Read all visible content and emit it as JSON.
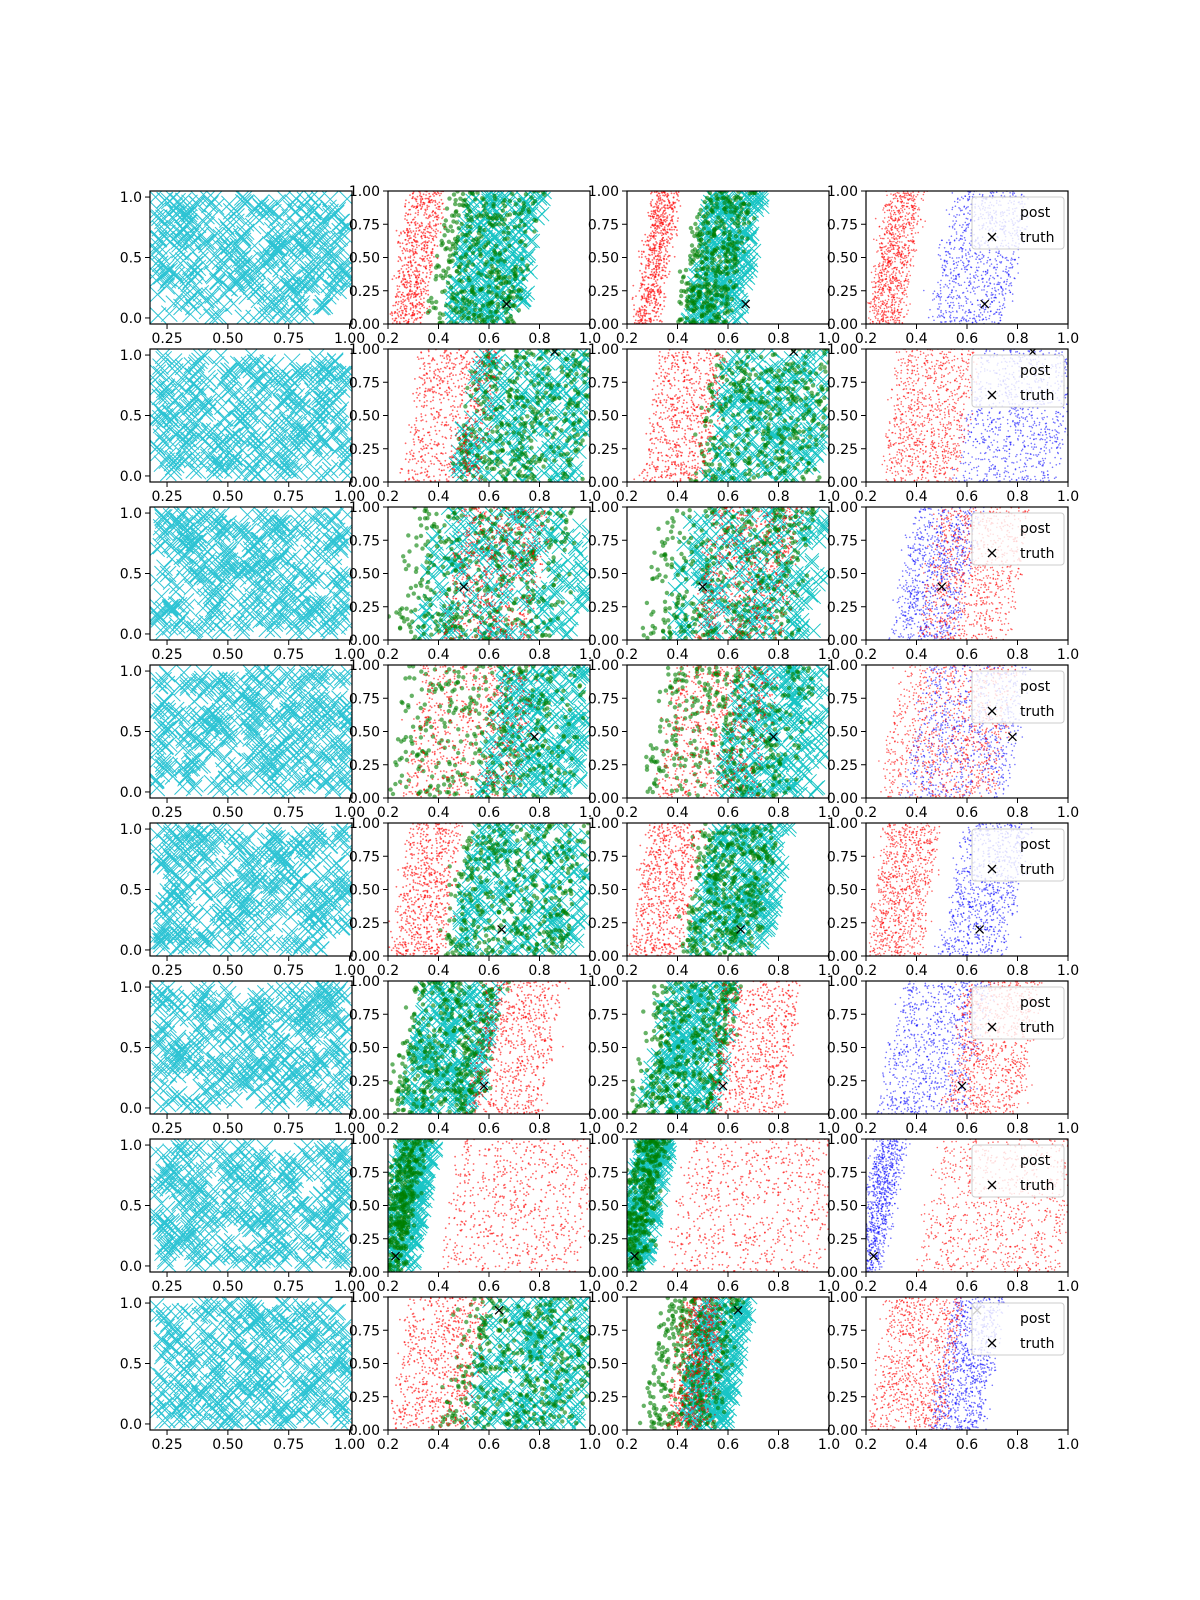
{
  "figure": {
    "rows": 8,
    "cols": 4
  },
  "colors": {
    "prior": "#17becf",
    "cyan_samples": "#00bfbf",
    "red_samples": "#ff0000",
    "green_samples": "#007f00",
    "blue_samples": "#0000ff",
    "truth_marker": "#000000"
  },
  "legend": {
    "post": "post",
    "truth": "truth",
    "placement": "upper right"
  },
  "chart_data": {
    "type": "scatter",
    "layout": "8x4 grid of scatter subplots",
    "columns": [
      {
        "col": 0,
        "content": "prior samples",
        "marker": "x",
        "color": "#17becf",
        "xlim": [
          0.18,
          1.01
        ],
        "ylim": [
          -0.05,
          1.05
        ],
        "xticks": [
          "0.25",
          "0.50",
          "0.75",
          "1.00"
        ],
        "yticks": [
          "0.0",
          "0.5",
          "1.0"
        ]
      },
      {
        "col": 1,
        "content": "red, green and cyan sample clouds",
        "xlim": [
          0.2,
          1.0
        ],
        "ylim": [
          0.0,
          1.0
        ],
        "xticks": [
          "0.2",
          "0.4",
          "0.6",
          "0.8",
          "1.0"
        ],
        "yticks": [
          "0.00",
          "0.25",
          "0.50",
          "0.75",
          "1.00"
        ]
      },
      {
        "col": 2,
        "content": "red, green and cyan sample clouds",
        "xlim": [
          0.2,
          1.0
        ],
        "ylim": [
          0.0,
          1.0
        ],
        "xticks": [
          "0.2",
          "0.4",
          "0.6",
          "0.8",
          "1.0"
        ],
        "yticks": [
          "0.00",
          "0.25",
          "0.50",
          "0.75",
          "1.00"
        ]
      },
      {
        "col": 3,
        "content": "posterior (red, blue) with truth",
        "xlim": [
          0.2,
          1.0
        ],
        "ylim": [
          0.0,
          1.0
        ],
        "xticks": [
          "0.2",
          "0.4",
          "0.6",
          "0.8",
          "1.0"
        ],
        "yticks": [
          "0.00",
          "0.25",
          "0.50",
          "0.75",
          "1.00"
        ],
        "legend": [
          "post",
          "truth"
        ]
      }
    ],
    "rows": [
      {
        "row": 0,
        "truth": [
          0.67,
          0.15
        ],
        "red_band": [
          0.25,
          0.38
        ],
        "green_band": [
          0.4,
          0.75
        ],
        "cyan_band": [
          0.48,
          0.78
        ],
        "blue_band": [
          0.5,
          0.8
        ],
        "col2_red": [
          0.27,
          0.36
        ],
        "col2_green": [
          0.45,
          0.65
        ],
        "col2_cyan": [
          0.48,
          0.7
        ]
      },
      {
        "row": 1,
        "truth": [
          0.86,
          0.98
        ],
        "red_band": [
          0.3,
          0.6
        ],
        "green_band": [
          0.5,
          1.0
        ],
        "cyan_band": [
          0.5,
          1.0
        ],
        "blue_band": [
          0.6,
          1.0
        ],
        "col2_red": [
          0.3,
          0.55
        ],
        "col2_green": [
          0.5,
          1.0
        ],
        "col2_cyan": [
          0.55,
          1.0
        ]
      },
      {
        "row": 2,
        "truth": [
          0.5,
          0.4
        ],
        "red_band": [
          0.45,
          0.8
        ],
        "green_band": [
          0.25,
          0.9
        ],
        "cyan_band": [
          0.35,
          1.0
        ],
        "blue_band": [
          0.35,
          0.6
        ],
        "col2_red": [
          0.5,
          0.85
        ],
        "col2_green": [
          0.3,
          0.9
        ],
        "col2_cyan": [
          0.4,
          1.0
        ]
      },
      {
        "row": 3,
        "truth": [
          0.78,
          0.46
        ],
        "red_band": [
          0.3,
          0.75
        ],
        "green_band": [
          0.25,
          0.95
        ],
        "cyan_band": [
          0.6,
          1.0
        ],
        "blue_band": [
          0.4,
          0.8
        ],
        "col2_red": [
          0.35,
          0.75
        ],
        "col2_green": [
          0.3,
          0.9
        ],
        "col2_cyan": [
          0.6,
          1.0
        ]
      },
      {
        "row": 4,
        "truth": [
          0.65,
          0.2
        ],
        "red_band": [
          0.25,
          0.45
        ],
        "green_band": [
          0.45,
          0.95
        ],
        "cyan_band": [
          0.5,
          1.0
        ],
        "blue_band": [
          0.55,
          0.8
        ],
        "col2_red": [
          0.25,
          0.45
        ],
        "col2_green": [
          0.45,
          0.75
        ],
        "col2_cyan": [
          0.5,
          0.8
        ]
      },
      {
        "row": 5,
        "truth": [
          0.58,
          0.21
        ],
        "red_band": [
          0.55,
          0.85
        ],
        "green_band": [
          0.25,
          0.6
        ],
        "cyan_band": [
          0.3,
          0.6
        ],
        "blue_band": [
          0.3,
          0.65
        ],
        "col2_red": [
          0.55,
          0.85
        ],
        "col2_green": [
          0.25,
          0.6
        ],
        "col2_cyan": [
          0.3,
          0.6
        ]
      },
      {
        "row": 6,
        "truth": [
          0.23,
          0.12
        ],
        "red_band": [
          0.45,
          1.0
        ],
        "green_band": [
          0.2,
          0.3
        ],
        "cyan_band": [
          0.2,
          0.35
        ],
        "blue_band": [
          0.2,
          0.3
        ],
        "col2_red": [
          0.4,
          1.0
        ],
        "col2_green": [
          0.2,
          0.3
        ],
        "col2_cyan": [
          0.2,
          0.33
        ]
      },
      {
        "row": 7,
        "truth": [
          0.64,
          0.9
        ],
        "red_band": [
          0.25,
          0.55
        ],
        "green_band": [
          0.45,
          1.0
        ],
        "cyan_band": [
          0.55,
          1.0
        ],
        "blue_band": [
          0.5,
          0.7
        ],
        "col2_red": [
          0.4,
          0.55
        ],
        "col2_green": [
          0.3,
          0.6
        ],
        "col2_cyan": [
          0.45,
          0.65
        ]
      }
    ]
  }
}
